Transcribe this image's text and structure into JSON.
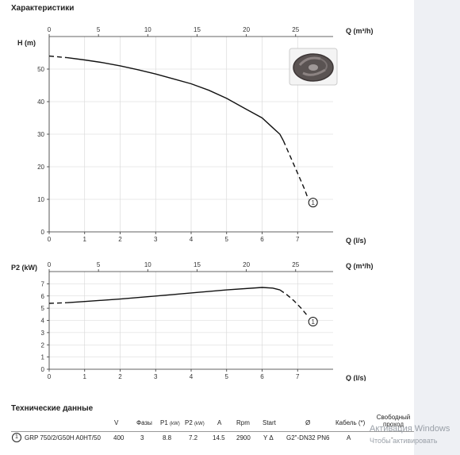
{
  "page": {
    "title": "Характеристики",
    "tech_title": "Технические данные"
  },
  "chart_data": [
    {
      "type": "line",
      "title": "",
      "ylabel": "H (m)",
      "xlabel": "Q (l/s)",
      "x2label": "Q (m³/h)",
      "xlim": [
        0,
        8
      ],
      "ylim": [
        0,
        60
      ],
      "x2lim": [
        0,
        28.8
      ],
      "xticks": [
        0,
        1,
        2,
        3,
        4,
        5,
        6,
        7
      ],
      "yticks": [
        0,
        10,
        20,
        30,
        40,
        50
      ],
      "x2ticks": [
        0,
        5,
        10,
        15,
        20,
        25
      ],
      "grid": true,
      "series": [
        {
          "x": [
            0,
            0.5,
            1,
            1.5,
            2,
            2.5,
            3,
            3.5,
            4,
            4.5,
            5,
            5.5,
            6,
            6.3,
            6.5,
            6.6,
            6.8,
            7,
            7.2,
            7.3
          ],
          "y": [
            54,
            53.5,
            52.8,
            52,
            51,
            49.8,
            48.5,
            47,
            45.5,
            43.5,
            41,
            38,
            35,
            32,
            30,
            28,
            23,
            18,
            13,
            10
          ]
        }
      ],
      "solid_range": [
        0.5,
        6.6
      ],
      "marker": {
        "label": "1",
        "x": 7.3,
        "y": 9
      }
    },
    {
      "type": "line",
      "title": "",
      "ylabel": "P2 (kW)",
      "xlabel": "Q (l/s)",
      "x2label": "Q (m³/h)",
      "xlim": [
        0,
        8
      ],
      "ylim": [
        0,
        8
      ],
      "x2lim": [
        0,
        28.8
      ],
      "xticks": [
        0,
        1,
        2,
        3,
        4,
        5,
        6,
        7
      ],
      "yticks": [
        0,
        1,
        2,
        3,
        4,
        5,
        6,
        7
      ],
      "x2ticks": [
        0,
        5,
        10,
        15,
        20,
        25
      ],
      "grid": true,
      "series": [
        {
          "x": [
            0,
            0.5,
            1,
            2,
            3,
            4,
            5,
            6,
            6.3,
            6.5,
            6.7,
            6.9,
            7.1,
            7.3
          ],
          "y": [
            5.4,
            5.45,
            5.55,
            5.75,
            6.0,
            6.25,
            6.5,
            6.7,
            6.65,
            6.5,
            6.1,
            5.6,
            5.0,
            4.3
          ]
        }
      ],
      "solid_range": [
        0.5,
        6.5
      ],
      "marker": {
        "label": "1",
        "x": 7.3,
        "y": 3.9
      }
    }
  ],
  "table": {
    "headers": [
      "V",
      "Фазы",
      "P1",
      "(kW)",
      "P2",
      "(kW)",
      "A",
      "Rpm",
      "Start",
      "Ø",
      "Кабель (*)",
      "Свободный проход"
    ],
    "row": {
      "index": "1",
      "model": "GRP 750/2/G50H A0HT/50",
      "values": [
        "400",
        "3",
        "8.8",
        "7.2",
        "14.5",
        "2900",
        "Y Δ",
        "G2\"-DN32 PN6",
        "A",
        "-"
      ]
    }
  },
  "watermark": {
    "line1": "Активация Windows",
    "line2": "Чтобы активировать"
  },
  "colors": {
    "curve": "#111111",
    "grid": "#d6d6d6",
    "axis": "#333333"
  }
}
